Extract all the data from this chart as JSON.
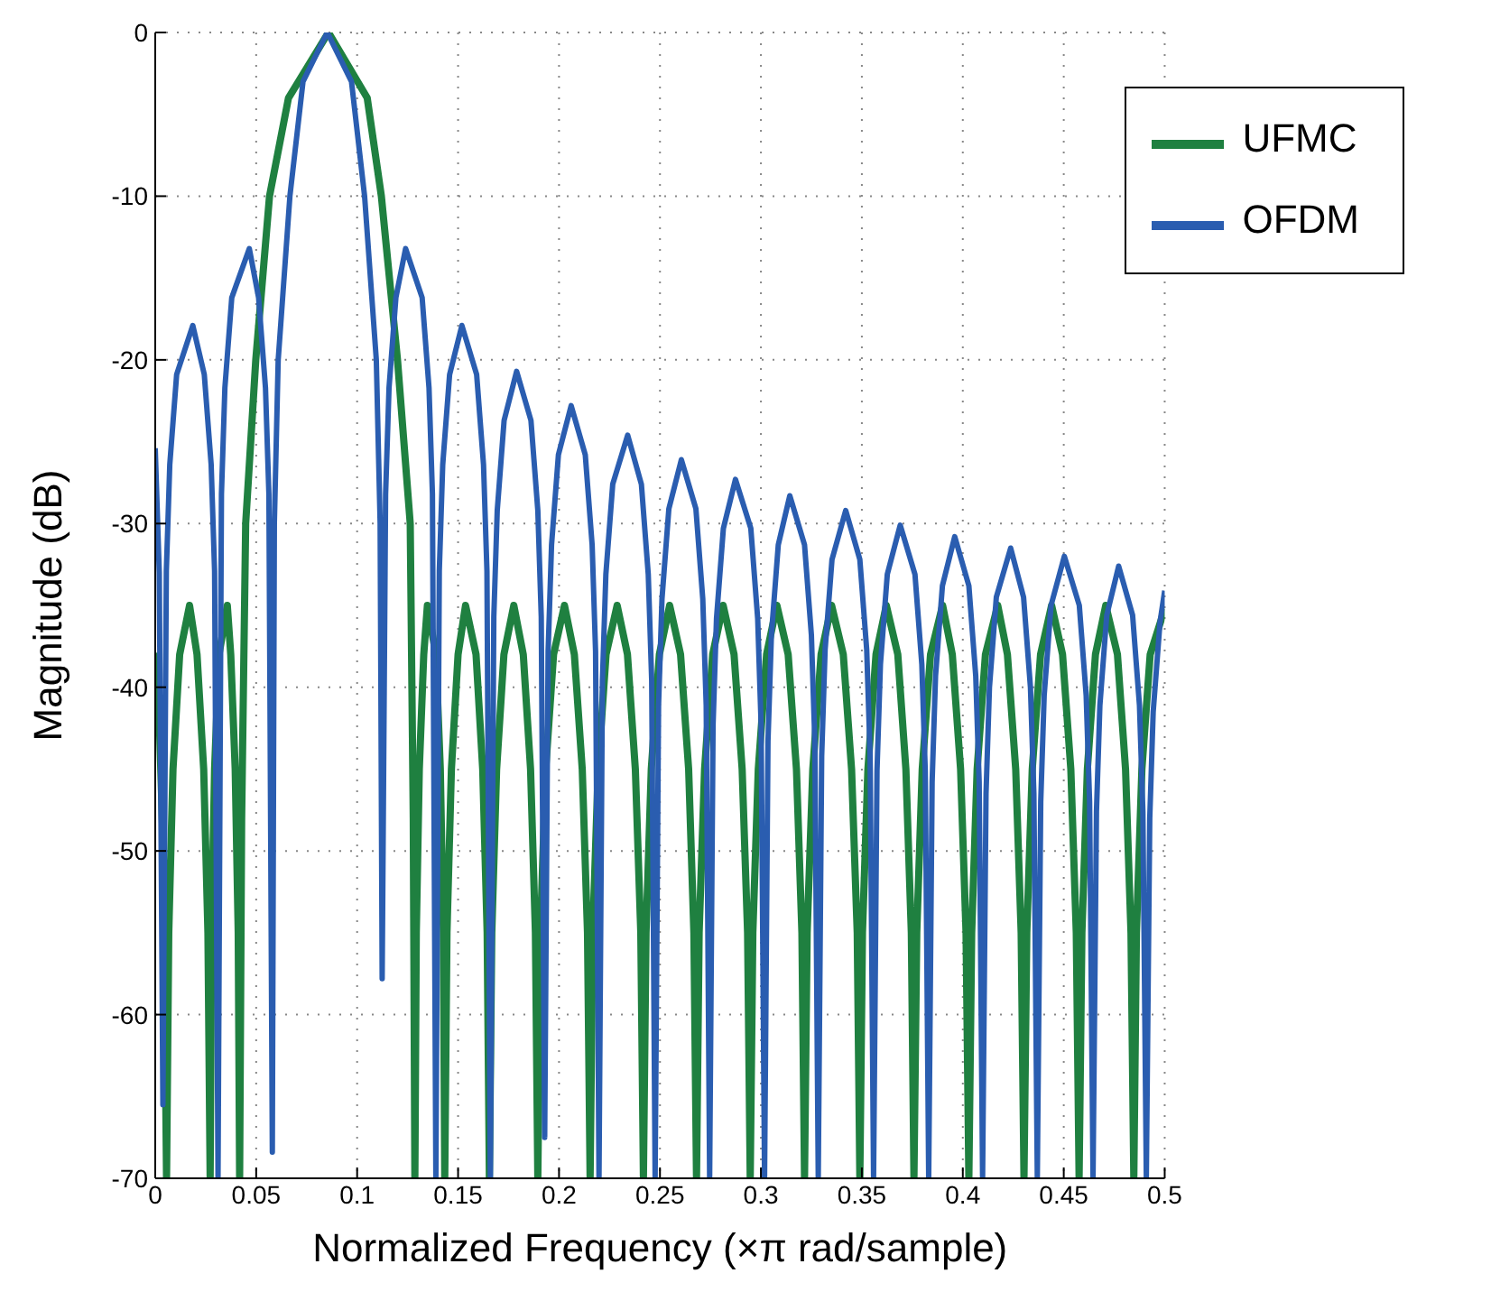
{
  "chart_data": {
    "type": "line",
    "xlabel": "Normalized Frequency (×π rad/sample)",
    "ylabel": "Magnitude (dB)",
    "xlim": [
      0,
      0.5
    ],
    "ylim": [
      -70,
      0
    ],
    "xticks": [
      0,
      0.05,
      0.1,
      0.15,
      0.2,
      0.25,
      0.3,
      0.35,
      0.4,
      0.45,
      0.5
    ],
    "yticks": [
      -70,
      -60,
      -50,
      -40,
      -30,
      -20,
      -10,
      0
    ],
    "grid": true,
    "legend": "top right",
    "marker": "none",
    "line_style": "solid",
    "series": [
      {
        "name": "UFMC",
        "color": "#1f8040",
        "x": [
          0,
          0.002,
          0.004,
          0.0056,
          0.0067,
          0.0088,
          0.0121,
          0.017,
          0.0207,
          0.024,
          0.0261,
          0.0272,
          0.0279,
          0.0294,
          0.0316,
          0.0357,
          0.0374,
          0.0396,
          0.0411,
          0.0418,
          0.0428,
          0.0448,
          0.0498,
          0.0566,
          0.066,
          0.0858,
          0.105,
          0.112,
          0.12,
          0.1263,
          0.1278,
          0.1286,
          0.1293,
          0.1308,
          0.133,
          0.1348,
          0.139,
          0.1412,
          0.1427,
          0.1434,
          0.1445,
          0.1467,
          0.15,
          0.1537,
          0.1589,
          0.1622,
          0.1644,
          0.1655,
          0.1667,
          0.1691,
          0.1727,
          0.1776,
          0.1823,
          0.1859,
          0.1883,
          0.1895,
          0.1908,
          0.1934,
          0.1973,
          0.2027,
          0.2076,
          0.2115,
          0.2141,
          0.2154,
          0.2167,
          0.2194,
          0.2233,
          0.2288,
          0.2339,
          0.2378,
          0.2405,
          0.2418,
          0.2431,
          0.2457,
          0.2497,
          0.2548,
          0.2602,
          0.2642,
          0.2668,
          0.2681,
          0.2694,
          0.2721,
          0.2761,
          0.2813,
          0.2867,
          0.2907,
          0.2934,
          0.2947,
          0.296,
          0.2987,
          0.3028,
          0.3079,
          0.3135,
          0.3176,
          0.3203,
          0.3216,
          0.3229,
          0.3257,
          0.3298,
          0.335,
          0.3408,
          0.3449,
          0.3477,
          0.349,
          0.3503,
          0.353,
          0.357,
          0.3621,
          0.3678,
          0.3718,
          0.3745,
          0.3758,
          0.3772,
          0.3799,
          0.384,
          0.39,
          0.3948,
          0.3989,
          0.4016,
          0.403,
          0.4044,
          0.4071,
          0.4112,
          0.4173,
          0.4221,
          0.4262,
          0.4289,
          0.4303,
          0.4317,
          0.4344,
          0.4385,
          0.444,
          0.4494,
          0.4535,
          0.4562,
          0.4576,
          0.459,
          0.4617,
          0.4657,
          0.4708,
          0.4766,
          0.4806,
          0.4833,
          0.4847,
          0.486,
          0.4887,
          0.4928,
          0.5
        ],
        "values": [
          -37.9,
          -42,
          -50,
          -70,
          -55,
          -45,
          -38,
          -35,
          -38,
          -45,
          -55,
          -70,
          -55,
          -45,
          -38,
          -35,
          -38,
          -45,
          -55,
          -70,
          -48,
          -30,
          -20,
          -10,
          -4,
          0,
          -4,
          -10,
          -20,
          -30,
          -48,
          -70,
          -55,
          -45,
          -38,
          -35,
          -38,
          -45,
          -55,
          -70,
          -55,
          -45,
          -38,
          -35,
          -38,
          -45,
          -55,
          -70,
          -55,
          -45,
          -38,
          -35,
          -38,
          -45,
          -55,
          -70,
          -55,
          -45,
          -38,
          -35,
          -38,
          -45,
          -55,
          -70,
          -55,
          -45,
          -38,
          -35,
          -38,
          -45,
          -55,
          -70,
          -55,
          -45,
          -38,
          -35,
          -38,
          -45,
          -55,
          -70,
          -55,
          -45,
          -38,
          -35,
          -38,
          -45,
          -55,
          -70,
          -55,
          -45,
          -38,
          -35,
          -38,
          -45,
          -55,
          -70,
          -55,
          -45,
          -38,
          -35,
          -38,
          -45,
          -55,
          -70,
          -55,
          -45,
          -38,
          -35,
          -38,
          -45,
          -55,
          -70,
          -55,
          -45,
          -38,
          -35,
          -38,
          -45,
          -55,
          -70,
          -55,
          -45,
          -38,
          -35,
          -38,
          -45,
          -55,
          -70,
          -55,
          -45,
          -38,
          -35,
          -38,
          -45,
          -55,
          -70,
          -55,
          -45,
          -38,
          -35,
          -38,
          -45,
          -55,
          -70,
          -55,
          -45,
          -38,
          -35.2
        ]
      },
      {
        "name": "OFDM",
        "color": "#2a5db0",
        "x": [
          0,
          0.002,
          0.0038,
          0.0055,
          0.0072,
          0.0106,
          0.0186,
          0.0243,
          0.0277,
          0.0294,
          0.0311,
          0.0328,
          0.0345,
          0.0379,
          0.0466,
          0.0512,
          0.0546,
          0.0563,
          0.058,
          0.059,
          0.0609,
          0.0667,
          0.0732,
          0.0852,
          0.0972,
          0.1037,
          0.1095,
          0.1114,
          0.1124,
          0.1141,
          0.1158,
          0.1192,
          0.124,
          0.1322,
          0.1356,
          0.1373,
          0.139,
          0.1407,
          0.1424,
          0.1458,
          0.1519,
          0.1592,
          0.1626,
          0.1643,
          0.166,
          0.1677,
          0.1694,
          0.1728,
          0.179,
          0.1861,
          0.1895,
          0.1912,
          0.1929,
          0.1946,
          0.1963,
          0.1997,
          0.206,
          0.213,
          0.2164,
          0.2181,
          0.2198,
          0.2215,
          0.2232,
          0.2266,
          0.234,
          0.2408,
          0.2442,
          0.2459,
          0.2476,
          0.2493,
          0.251,
          0.2544,
          0.2606,
          0.2678,
          0.2712,
          0.2729,
          0.2746,
          0.2763,
          0.278,
          0.2814,
          0.2874,
          0.295,
          0.2984,
          0.3001,
          0.3018,
          0.3035,
          0.3052,
          0.3086,
          0.3143,
          0.3216,
          0.325,
          0.3267,
          0.3284,
          0.3301,
          0.3318,
          0.3352,
          0.342,
          0.349,
          0.3524,
          0.3541,
          0.3558,
          0.3575,
          0.3592,
          0.3626,
          0.369,
          0.3763,
          0.3797,
          0.3814,
          0.3831,
          0.3848,
          0.3865,
          0.3899,
          0.396,
          0.403,
          0.4064,
          0.4081,
          0.4098,
          0.4115,
          0.4132,
          0.4166,
          0.4237,
          0.4301,
          0.4335,
          0.4352,
          0.4369,
          0.4386,
          0.4403,
          0.4437,
          0.4503,
          0.4577,
          0.4611,
          0.4628,
          0.4645,
          0.4662,
          0.4679,
          0.4713,
          0.4772,
          0.4841,
          0.4875,
          0.4892,
          0.4909,
          0.4926,
          0.4943,
          0.4977,
          0.5
        ],
        "values": [
          -25.4,
          -33,
          -65.5,
          -32.9,
          -26.4,
          -20.9,
          -17.9,
          -20.9,
          -26.4,
          -32.9,
          -70,
          -28.2,
          -21.7,
          -16.2,
          -13.2,
          -16.2,
          -21.7,
          -28.2,
          -68.4,
          -30,
          -20,
          -10,
          -3,
          0,
          -3,
          -10,
          -20,
          -30,
          -57.8,
          -28.2,
          -21.7,
          -16.2,
          -13.2,
          -16.2,
          -21.7,
          -28.2,
          -70,
          -32.9,
          -26.4,
          -20.9,
          -17.9,
          -20.9,
          -26.4,
          -32.9,
          -70,
          -35.7,
          -29.2,
          -23.7,
          -20.7,
          -23.7,
          -29.2,
          -35.7,
          -67.5,
          -37.8,
          -31.3,
          -25.8,
          -22.8,
          -25.8,
          -31.3,
          -37.8,
          -70,
          -39.6,
          -33.1,
          -27.6,
          -24.6,
          -27.6,
          -33.1,
          -39.6,
          -70,
          -41.1,
          -34.6,
          -29.1,
          -26.1,
          -29.1,
          -34.6,
          -41.1,
          -70,
          -42.3,
          -35.8,
          -30.3,
          -27.3,
          -30.3,
          -35.8,
          -42.3,
          -70,
          -43.3,
          -36.8,
          -31.3,
          -28.3,
          -31.3,
          -36.8,
          -43.3,
          -70,
          -44.2,
          -37.7,
          -32.2,
          -29.2,
          -32.2,
          -37.7,
          -44.2,
          -70,
          -45.1,
          -38.6,
          -33.1,
          -30.1,
          -33.1,
          -38.6,
          -45.1,
          -70,
          -45.8,
          -39.3,
          -33.8,
          -30.8,
          -33.8,
          -39.3,
          -45.8,
          -70,
          -46.5,
          -40,
          -34.5,
          -31.5,
          -34.5,
          -40,
          -46.5,
          -70,
          -47,
          -40.5,
          -35,
          -32,
          -35,
          -40.5,
          -47,
          -70,
          -47.6,
          -41.1,
          -35.6,
          -32.6,
          -35.6,
          -41.1,
          -47.6,
          -70,
          -48,
          -41.5,
          -36,
          -34.1
        ]
      }
    ]
  }
}
